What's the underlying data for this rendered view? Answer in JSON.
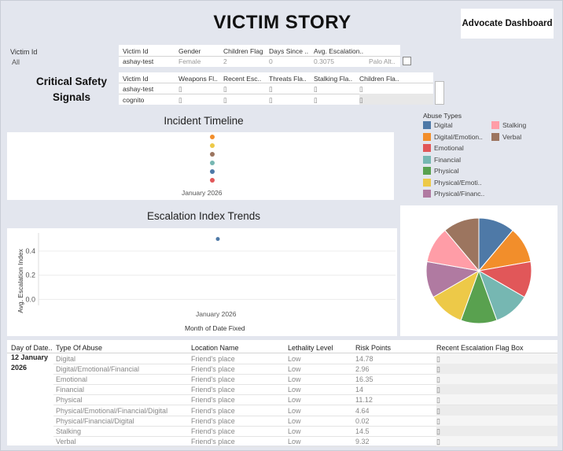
{
  "header": {
    "title": "VICTIM STORY",
    "advocate_button": "Advocate Dashboard"
  },
  "filter": {
    "label": "Victim Id",
    "value": "All"
  },
  "victim_table": {
    "headers": [
      "Victim Id",
      "Gender",
      "Children Flag",
      "Days Since ..",
      "Avg. Escalation..",
      ""
    ],
    "row": [
      "ashay-test",
      "Female",
      "2",
      "0",
      "0.3075",
      "Palo Alt.."
    ]
  },
  "signals": {
    "title": "Critical Safety Signals",
    "headers": [
      "Victim Id",
      "Weapons Fl..",
      "Recent Esc..",
      "Threats Fla..",
      "Stalking Fla..",
      "Children Fla.."
    ],
    "rows": [
      {
        "id": "ashay-test",
        "marks": [
          "▯",
          "▯",
          "▯",
          "▯",
          "▯"
        ]
      },
      {
        "id": "cognito",
        "marks": [
          "▯",
          "▯",
          "▯",
          "▯",
          "▯"
        ]
      }
    ]
  },
  "timeline": {
    "title": "Incident Timeline",
    "xlabel": "January 2026",
    "dots": [
      "#f28e2b",
      "#edc948",
      "#9c755f",
      "#76b7b2",
      "#4e79a7",
      "#e15759"
    ]
  },
  "legend": {
    "title": "Abuse Types",
    "items": [
      {
        "label": "Digital",
        "color": "#4e79a7"
      },
      {
        "label": "Stalking",
        "color": "#ff9da7"
      },
      {
        "label": "Digital/Emotion..",
        "color": "#f28e2b"
      },
      {
        "label": "Verbal",
        "color": "#9c755f"
      },
      {
        "label": "Emotional",
        "color": "#e15759"
      },
      {
        "label": "Financial",
        "color": "#76b7b2"
      },
      {
        "label": "Physical",
        "color": "#59a14f"
      },
      {
        "label": "Physical/Emoti..",
        "color": "#edc948"
      },
      {
        "label": "Physical/Financ..",
        "color": "#b07aa1"
      }
    ]
  },
  "chart_data": {
    "type": "scatter",
    "title": "Escalation Index Trends",
    "xlabel": "Month of Date Fixed",
    "ylabel": "Avg. Escalation Index",
    "categories": [
      "January 2026"
    ],
    "values": [
      0.5
    ],
    "yticks": [
      0.0,
      0.2,
      0.4
    ],
    "ylim": [
      -0.05,
      0.55
    ],
    "grid": true
  },
  "pie": {
    "slices": [
      {
        "name": "Digital",
        "value": 1,
        "color": "#4e79a7"
      },
      {
        "name": "Digital/Emotional/Financial",
        "value": 1,
        "color": "#f28e2b"
      },
      {
        "name": "Emotional",
        "value": 1,
        "color": "#e15759"
      },
      {
        "name": "Financial",
        "value": 1,
        "color": "#76b7b2"
      },
      {
        "name": "Physical",
        "value": 1,
        "color": "#59a14f"
      },
      {
        "name": "Physical/Emotional/Financial/Digital",
        "value": 1,
        "color": "#edc948"
      },
      {
        "name": "Physical/Financial/Digital",
        "value": 1,
        "color": "#b07aa1"
      },
      {
        "name": "Stalking",
        "value": 1,
        "color": "#ff9da7"
      },
      {
        "name": "Verbal",
        "value": 1,
        "color": "#9c755f"
      }
    ]
  },
  "incidents": {
    "headers": [
      "Day of Date..",
      "Type Of Abuse",
      "Location Name",
      "Lethality Level",
      "Risk Points",
      "Recent Escalation Flag Box"
    ],
    "date_line1": "12 January",
    "date_line2": "2026",
    "rows": [
      {
        "type": "Digital",
        "location": "Friend's place",
        "level": "Low",
        "points": "14.78",
        "flag": "▯"
      },
      {
        "type": "Digital/Emotional/Financial",
        "location": "Friend's place",
        "level": "Low",
        "points": "2.96",
        "flag": "▯"
      },
      {
        "type": "Emotional",
        "location": "Friend's place",
        "level": "Low",
        "points": "16.35",
        "flag": "▯"
      },
      {
        "type": "Financial",
        "location": "Friend's place",
        "level": "Low",
        "points": "14",
        "flag": "▯"
      },
      {
        "type": "Physical",
        "location": "Friend's place",
        "level": "Low",
        "points": "11.12",
        "flag": "▯"
      },
      {
        "type": "Physical/Emotional/Financial/Digital",
        "location": "Friend's place",
        "level": "Low",
        "points": "4.64",
        "flag": "▯"
      },
      {
        "type": "Physical/Financial/Digital",
        "location": "Friend's place",
        "level": "Low",
        "points": "0.02",
        "flag": "▯"
      },
      {
        "type": "Stalking",
        "location": "Friend's place",
        "level": "Low",
        "points": "14.5",
        "flag": "▯"
      },
      {
        "type": "Verbal",
        "location": "Friend's place",
        "level": "Low",
        "points": "9.32",
        "flag": "▯"
      }
    ]
  }
}
